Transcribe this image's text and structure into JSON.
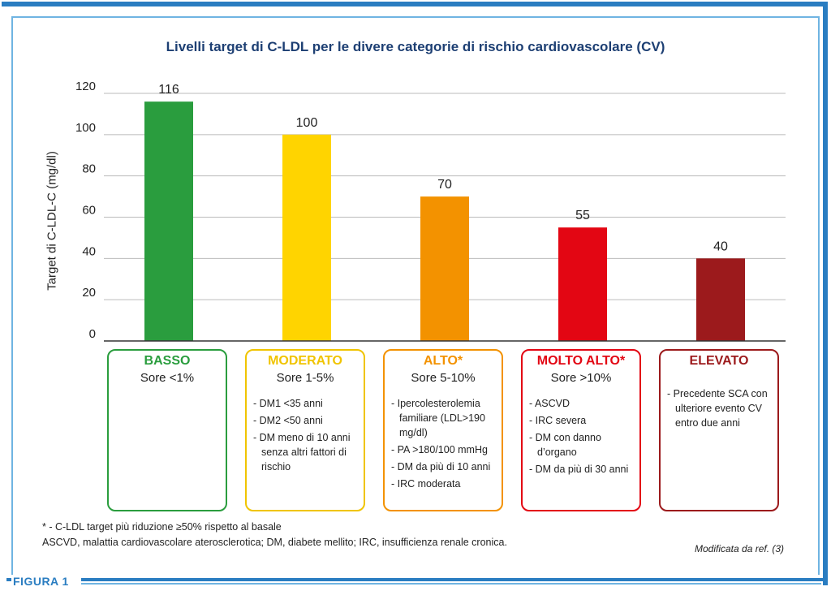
{
  "chart_data": {
    "type": "bar",
    "title": "Livelli target di C-LDL per le divere categorie di rischio cardiovascolare (CV)",
    "ylabel": "Target di C-LDL-C (mg/dl)",
    "ylim": [
      0,
      120
    ],
    "yticks": [
      0,
      20,
      40,
      60,
      80,
      100,
      120
    ],
    "grid": true,
    "categories": [
      "BASSO",
      "MODERATO",
      "ALTO*",
      "MOLTO ALTO*",
      "ELEVATO"
    ],
    "values": [
      116,
      100,
      70,
      55,
      40
    ],
    "data_labels": [
      "116",
      "100",
      "70",
      "55",
      "40"
    ],
    "colors": [
      "#2a9d3e",
      "#ffd400",
      "#f39200",
      "#e30613",
      "#9c1a1c"
    ]
  },
  "categories": [
    {
      "name": "BASSO",
      "score": "Sore <1%",
      "color": "#2a9d3e",
      "items": []
    },
    {
      "name": "MODERATO",
      "score": "Sore 1-5%",
      "color": "#f0c400",
      "items": [
        "- DM1 <35 anni",
        "- DM2 <50 anni",
        "- DM meno di 10 anni senza altri fattori di rischio"
      ]
    },
    {
      "name": "ALTO*",
      "score": "Sore 5-10%",
      "color": "#f39200",
      "items": [
        "- Ipercolesterolemia familiare (LDL>190 mg/dl)",
        "- PA >180/100 mmHg",
        "- DM da più di 10 anni",
        "- IRC moderata"
      ]
    },
    {
      "name": "MOLTO ALTO*",
      "score": "Sore >10%",
      "color": "#e30613",
      "items": [
        "- ASCVD",
        "- IRC severa",
        "- DM con danno d’organo",
        "- DM da più di 30 anni"
      ]
    },
    {
      "name": "ELEVATO",
      "score": "",
      "color": "#9c1a1c",
      "items": [
        "- Precedente SCA con ulteriore evento CV entro due anni"
      ]
    }
  ],
  "footnotes": {
    "line1": "* - C-LDL target più riduzione ≥50% rispetto al basale",
    "line2": "ASCVD, malattia cardiovascolare aterosclerotica; DM, diabete mellito; IRC, insufficienza renale cronica.",
    "source": "Modificata da ref. (3)"
  },
  "figure_label": "FIGURA 1",
  "colors": {
    "frame": "#2a7dc1",
    "frame_light": "#6fb4e2",
    "title": "#1d3f73",
    "grid": "#bbbbbb"
  }
}
